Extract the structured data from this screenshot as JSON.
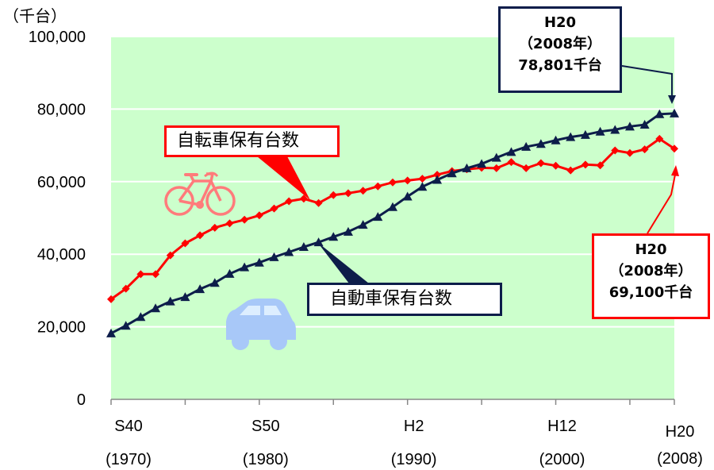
{
  "chart_data": {
    "type": "line",
    "unit_label": "（千台）",
    "ylim": [
      0,
      100000
    ],
    "y_ticks": [
      "0",
      "20,000",
      "40,000",
      "60,000",
      "80,000",
      "100,000"
    ],
    "grid": "horizontal",
    "x_tick_labels": [
      {
        "era": "S40",
        "year": "(1970)",
        "x": 1970
      },
      {
        "era": "S50",
        "year": "(1980)",
        "x": 1980
      },
      {
        "era": "H2",
        "year": "(1990)",
        "x": 1990
      },
      {
        "era": "H12",
        "year": "(2000)",
        "x": 2000
      },
      {
        "era": "H20",
        "year": "(2008)",
        "x": 2008
      }
    ],
    "x": [
      1970,
      1971,
      1972,
      1973,
      1974,
      1975,
      1976,
      1977,
      1978,
      1979,
      1980,
      1981,
      1982,
      1983,
      1984,
      1985,
      1986,
      1987,
      1988,
      1989,
      1990,
      1991,
      1992,
      1993,
      1994,
      1995,
      1996,
      1997,
      1998,
      1999,
      2000,
      2001,
      2002,
      2003,
      2004,
      2005,
      2006,
      2007,
      2008
    ],
    "series": [
      {
        "name": "自転車保有台数",
        "color": "#ff0000",
        "marker": "diamond",
        "values": [
          27600,
          30500,
          34500,
          34500,
          39700,
          43000,
          45200,
          47300,
          48500,
          49500,
          50700,
          52600,
          54600,
          55300,
          54100,
          56300,
          56800,
          57500,
          58700,
          59800,
          60300,
          60800,
          61900,
          62900,
          63400,
          63800,
          63700,
          65400,
          63700,
          65100,
          64400,
          63100,
          64700,
          64500,
          68600,
          67900,
          68900,
          71800,
          69100
        ]
      },
      {
        "name": "自動車保有台数",
        "color": "#0d1d4a",
        "marker": "triangle",
        "values": [
          18200,
          20300,
          22700,
          25100,
          27000,
          28200,
          30400,
          32100,
          34600,
          36400,
          37700,
          39200,
          40600,
          42000,
          43300,
          44800,
          46200,
          48100,
          50300,
          53000,
          55900,
          58600,
          60500,
          62300,
          63700,
          64900,
          66600,
          68200,
          69600,
          70400,
          71400,
          72300,
          72900,
          73800,
          74300,
          75200,
          75700,
          78600,
          78801
        ]
      }
    ],
    "callouts": {
      "bike_series_label": "自転車保有台数",
      "car_series_label": "自動車保有台数",
      "car_note": {
        "era": "H20",
        "year": "（2008年）",
        "value": "78,801千台"
      },
      "bike_note": {
        "era": "H20",
        "year": "（2008年）",
        "value": "69,100千台"
      }
    },
    "icons": [
      "bicycle-icon",
      "car-icon"
    ],
    "colors": {
      "plot_bg": "#ccffcc",
      "bike": "#ff0000",
      "car": "#0d1d4a",
      "bike_icon": "#ff7b7b",
      "car_icon": "#a8c8f8"
    }
  }
}
